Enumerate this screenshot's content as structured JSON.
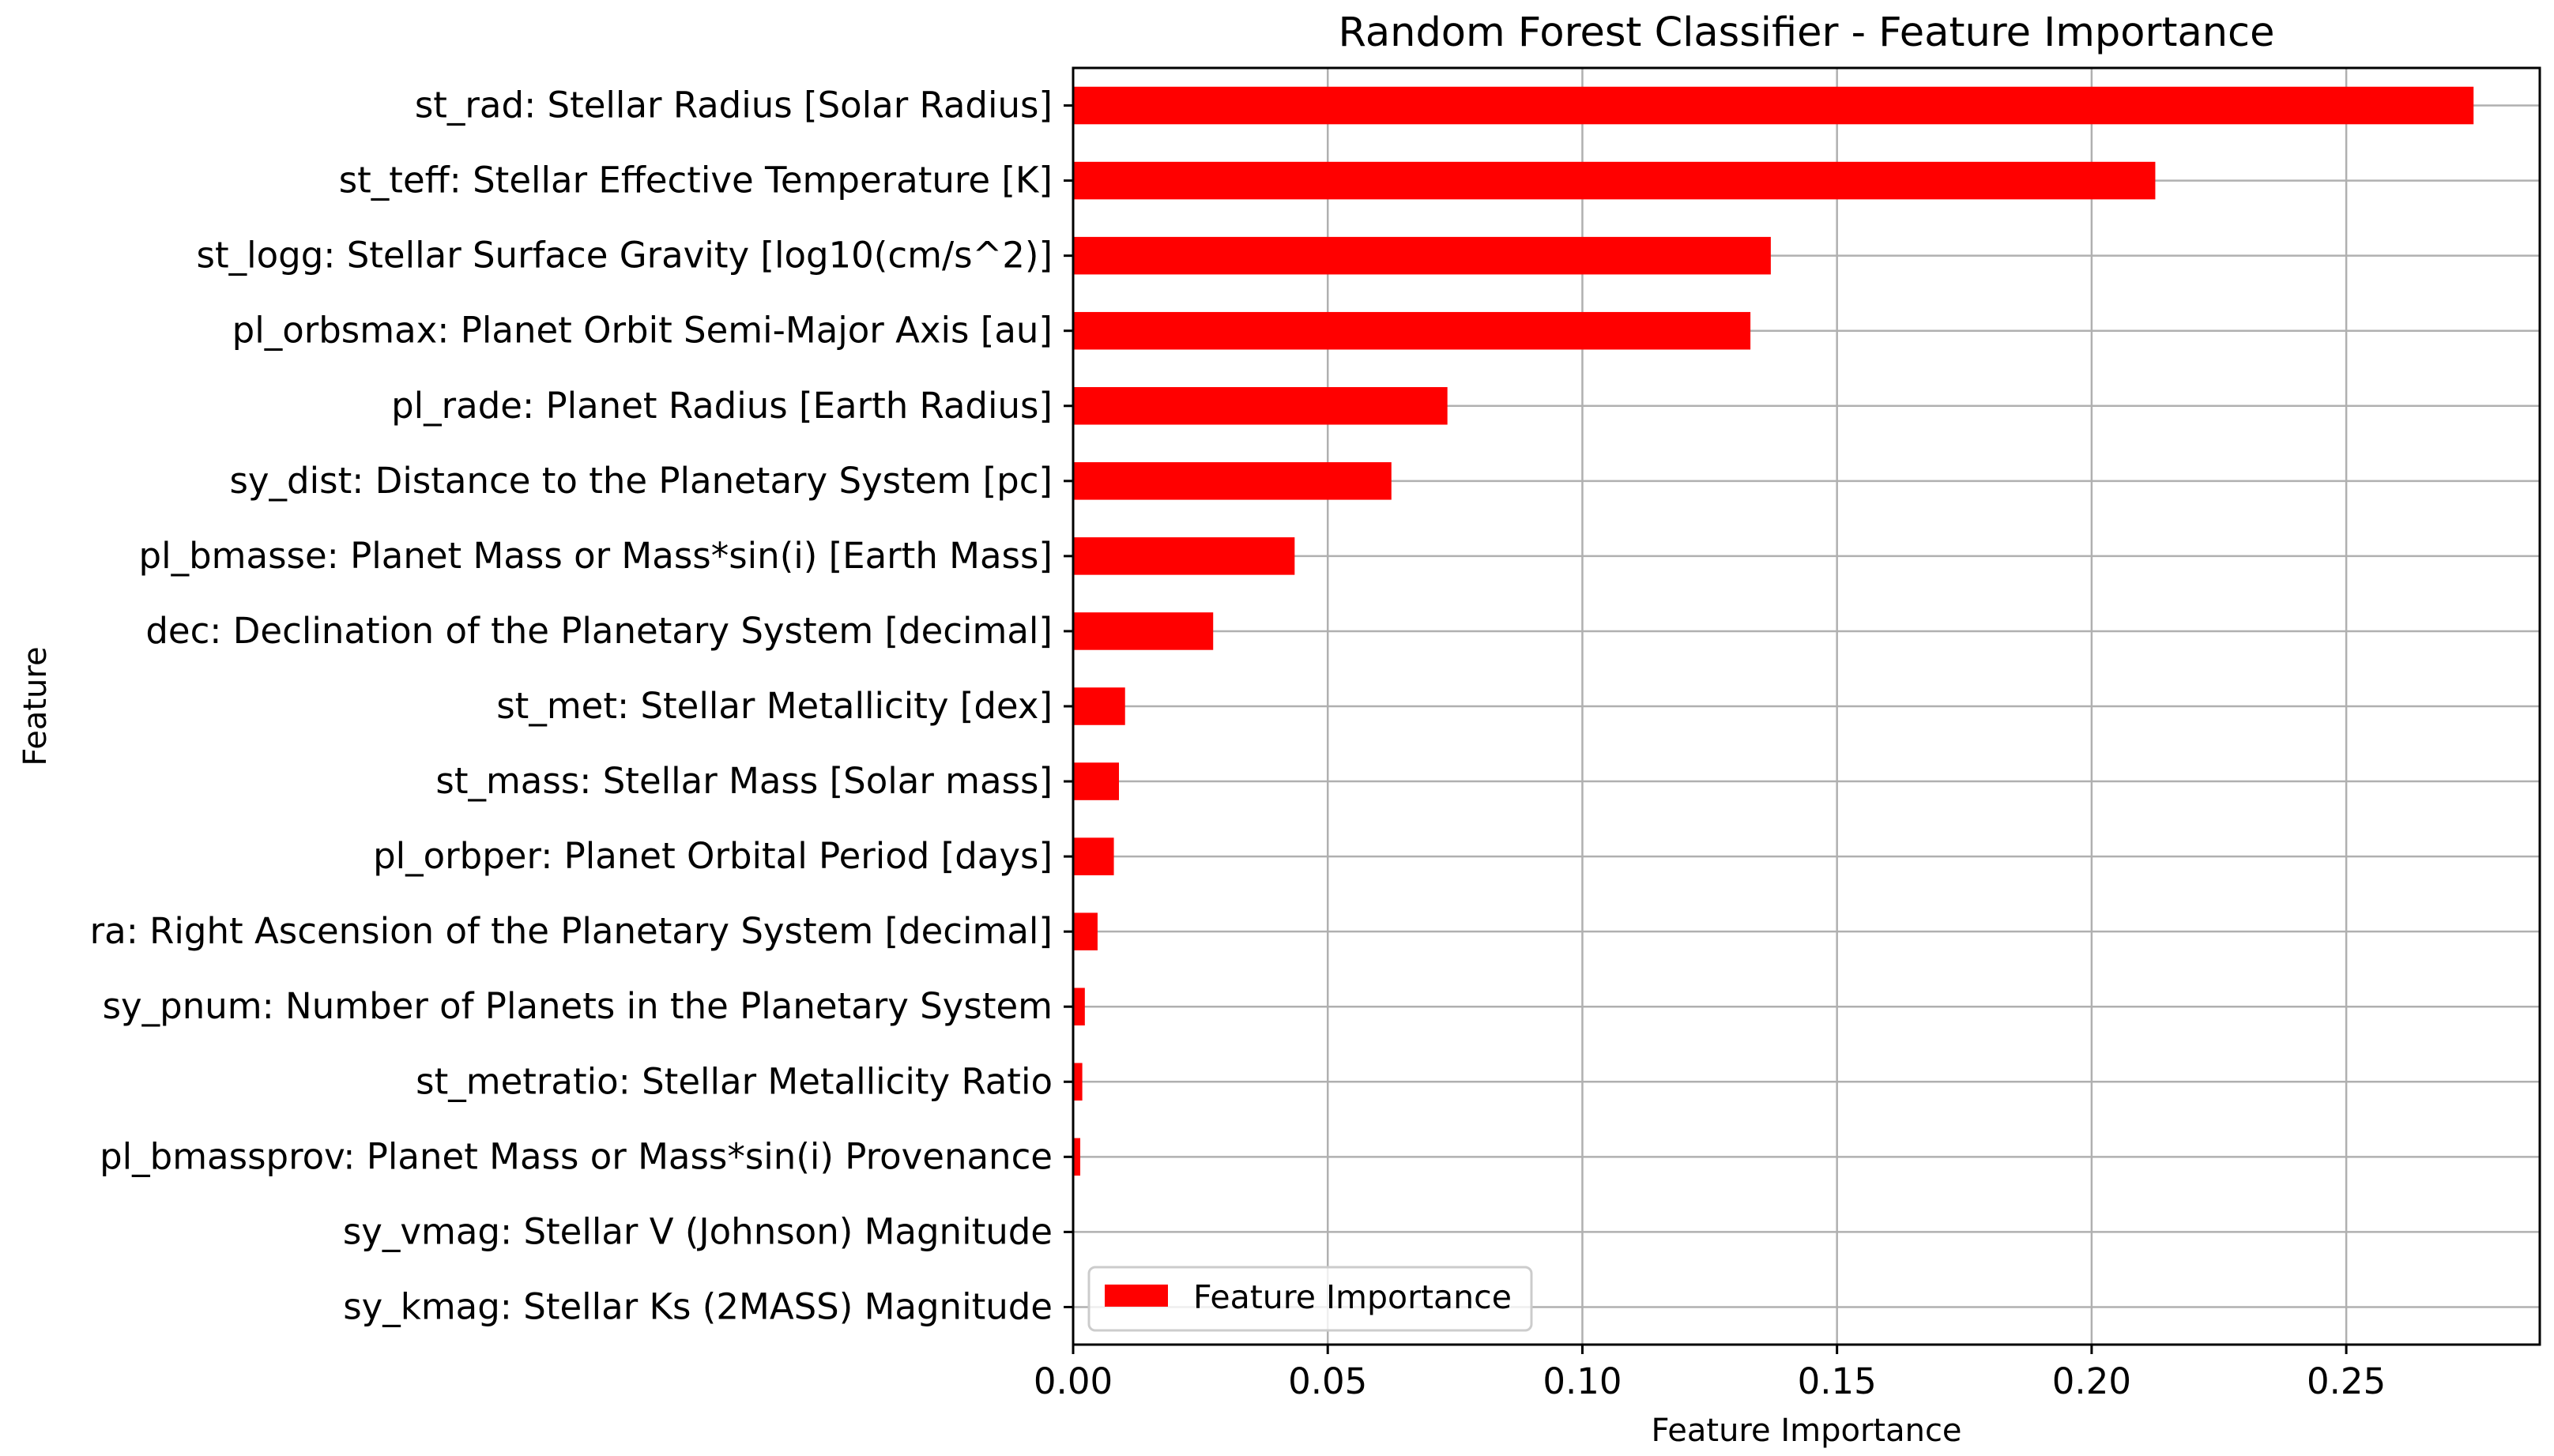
{
  "chart_data": {
    "type": "bar",
    "orientation": "horizontal",
    "title": "Random Forest Classifier - Feature Importance",
    "xlabel": "Feature Importance",
    "ylabel": "Feature",
    "xlim": [
      0,
      0.288
    ],
    "xticks": [
      0.0,
      0.05,
      0.1,
      0.15,
      0.2,
      0.25
    ],
    "xtick_labels": [
      "0.00",
      "0.05",
      "0.10",
      "0.15",
      "0.20",
      "0.25"
    ],
    "grid": true,
    "legend": {
      "position": "bottom-left",
      "entries": [
        "Feature Importance"
      ]
    },
    "bar_color": "#ff0000",
    "categories": [
      "st_rad: Stellar Radius [Solar Radius]",
      "st_teff: Stellar Effective Temperature [K]",
      "st_logg: Stellar Surface Gravity [log10(cm/s^2)]",
      "pl_orbsmax: Planet Orbit Semi-Major Axis [au]",
      "pl_rade: Planet Radius [Earth Radius]",
      "sy_dist: Distance to the Planetary System [pc]",
      "pl_bmasse: Planet Mass or Mass*sin(i) [Earth Mass]",
      "dec: Declination of the Planetary System [decimal]",
      "st_met: Stellar Metallicity [dex]",
      "st_mass: Stellar Mass [Solar mass]",
      "pl_orbper: Planet Orbital Period [days]",
      "ra: Right Ascension of the Planetary System [decimal]",
      "sy_pnum: Number of Planets in the Planetary System",
      "st_metratio: Stellar Metallicity Ratio",
      "pl_bmassprov: Planet Mass or Mass*sin(i) Provenance",
      "sy_vmag: Stellar V (Johnson) Magnitude",
      "sy_kmag: Stellar Ks (2MASS) Magnitude"
    ],
    "values": [
      0.275,
      0.2125,
      0.137,
      0.133,
      0.0735,
      0.0625,
      0.0435,
      0.0275,
      0.0102,
      0.009,
      0.008,
      0.0048,
      0.0023,
      0.0018,
      0.0014,
      0.0,
      0.0
    ]
  }
}
